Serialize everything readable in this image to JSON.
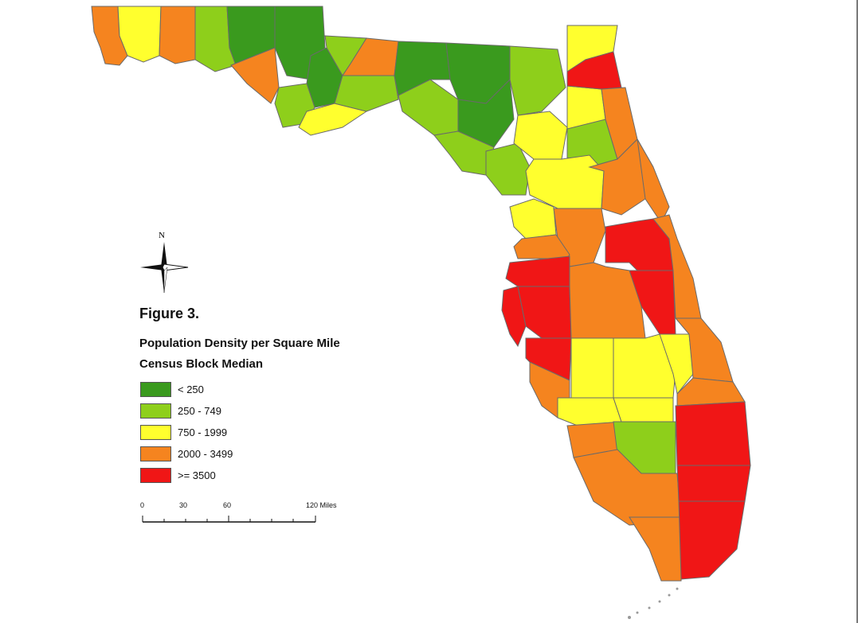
{
  "figure_label": "Figure 3.",
  "legend": {
    "title_line1": "Population Density per Square Mile",
    "title_line2": "Census Block Median",
    "classes": [
      {
        "label": "< 250",
        "color": "#3a9a1e"
      },
      {
        "label": "250 - 749",
        "color": "#8ecf1b"
      },
      {
        "label": "750 - 1999",
        "color": "#ffff2e"
      },
      {
        "label": "2000 - 3499",
        "color": "#f5841f"
      },
      {
        "label": ">= 3500",
        "color": "#f01616"
      }
    ]
  },
  "north_label": "N",
  "scale_bar": {
    "ticks": [
      "0",
      "30",
      "60",
      "120 Miles"
    ]
  },
  "colors": {
    "water": "#ffffff",
    "border": "#7a7a7a",
    "county_line": "#5a5a5a"
  }
}
